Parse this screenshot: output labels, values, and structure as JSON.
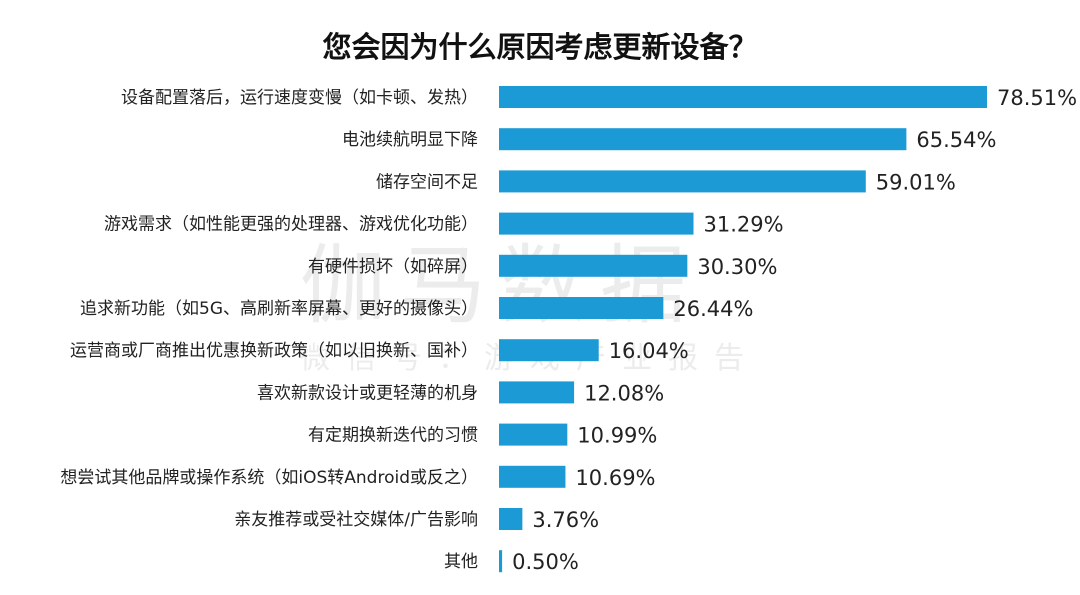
{
  "chart_data": {
    "type": "bar",
    "orientation": "horizontal",
    "title": "您会因为什么原因考虑更新设备？",
    "xlabel": "",
    "ylabel": "",
    "xlim": [
      0,
      78.51
    ],
    "grid": false,
    "color": "#1b9ad6",
    "categories": [
      "设备配置落后，运行速度变慢（如卡顿、发热）",
      "电池续航明显下降",
      "储存空间不足",
      "游戏需求（如性能更强的处理器、游戏优化功能）",
      "有硬件损坏（如碎屏）",
      "追求新功能（如5G、高刷新率屏幕、更好的摄像头）",
      "运营商或厂商推出优惠换新政策（如以旧换新、国补）",
      "喜欢新款设计或更轻薄的机身",
      "有定期换新迭代的习惯",
      "想尝试其他品牌或操作系统（如iOS转Android或反之）",
      "亲友推荐或受社交媒体/广告影响",
      "其他"
    ],
    "values": [
      78.51,
      65.54,
      59.01,
      31.29,
      30.3,
      26.44,
      16.04,
      12.08,
      10.99,
      10.69,
      3.76,
      0.5
    ],
    "value_labels": [
      "78.51%",
      "65.54%",
      "59.01%",
      "31.29%",
      "30.30%",
      "26.44%",
      "16.04%",
      "12.08%",
      "10.99%",
      "10.69%",
      "3.76%",
      "0.50%"
    ]
  },
  "watermark": {
    "brand": "伽马数据",
    "sub": "微信号：游戏产业报告"
  }
}
